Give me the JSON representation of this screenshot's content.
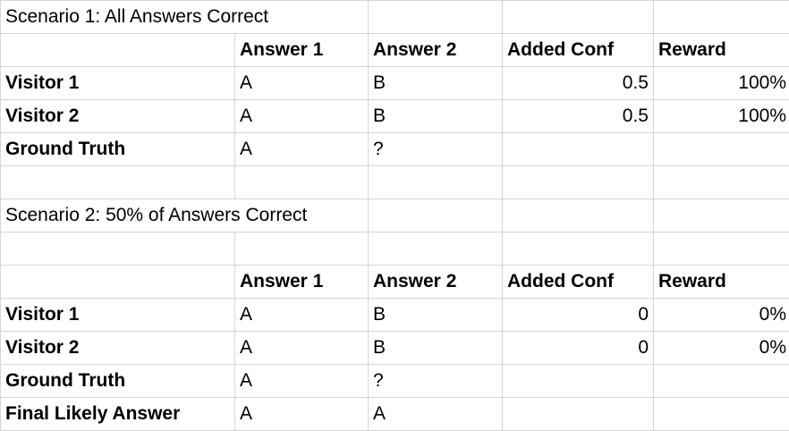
{
  "scenario1": {
    "title": "Scenario 1: All Answers Correct",
    "headers": [
      "Answer 1",
      "Answer 2",
      "Added Conf",
      "Reward"
    ],
    "rows": [
      {
        "label": "Visitor 1",
        "a1": "A",
        "a2": "B",
        "conf": "0.5",
        "reward": "100%"
      },
      {
        "label": "Visitor 2",
        "a1": "A",
        "a2": "B",
        "conf": "0.5",
        "reward": "100%"
      },
      {
        "label": "Ground Truth",
        "a1": "A",
        "a2": "?",
        "conf": "",
        "reward": ""
      }
    ]
  },
  "scenario2": {
    "title": "Scenario 2: 50% of Answers Correct",
    "headers": [
      "Answer 1",
      "Answer 2",
      "Added Conf",
      "Reward"
    ],
    "rows": [
      {
        "label": "Visitor 1",
        "a1": "A",
        "a2": "B",
        "conf": "0",
        "reward": "0%"
      },
      {
        "label": "Visitor 2",
        "a1": "A",
        "a2": "B",
        "conf": "0",
        "reward": "0%"
      },
      {
        "label": "Ground Truth",
        "a1": "A",
        "a2": "?",
        "conf": "",
        "reward": ""
      },
      {
        "label": "Final Likely Answer",
        "a1": "A",
        "a2": "A",
        "conf": "",
        "reward": ""
      }
    ]
  }
}
